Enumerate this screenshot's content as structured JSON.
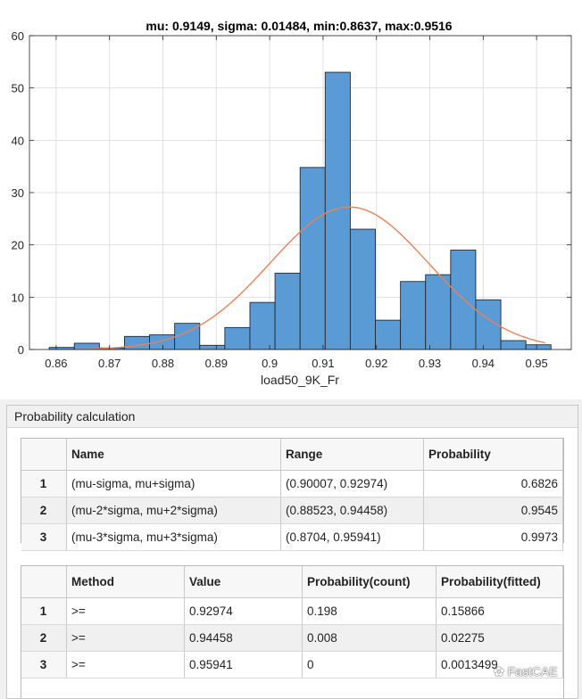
{
  "chart_data": {
    "type": "bar",
    "subtype": "histogram",
    "title": "mu: 0.9149, sigma: 0.01484, min:0.8637, max:0.9516",
    "xlabel": "load50_9K_Fr",
    "ylabel": "",
    "xlim": [
      0.855,
      0.9565
    ],
    "ylim": [
      0,
      60
    ],
    "xticks": [
      0.86,
      0.87,
      0.88,
      0.89,
      0.9,
      0.91,
      0.92,
      0.93,
      0.94,
      0.95
    ],
    "xtick_labels": [
      "0.86",
      "0.87",
      "0.88",
      "0.89",
      "0.9",
      "0.91",
      "0.92",
      "0.93",
      "0.94",
      "0.95"
    ],
    "yticks": [
      0,
      10,
      20,
      30,
      40,
      50,
      60
    ],
    "ytick_labels": [
      "0",
      "10",
      "20",
      "30",
      "40",
      "50",
      "60"
    ],
    "grid": true,
    "bin_edges": [
      0.8587,
      0.8634,
      0.8681,
      0.8728,
      0.8775,
      0.8822,
      0.8869,
      0.8916,
      0.8963,
      0.901,
      0.9057,
      0.9104,
      0.9151,
      0.9198,
      0.9245,
      0.9292,
      0.9339,
      0.9386,
      0.9433,
      0.948,
      0.9527
    ],
    "values": [
      0.4,
      1.2,
      0.3,
      2.5,
      2.8,
      5.0,
      0.8,
      4.2,
      9.0,
      14.6,
      34.8,
      53.0,
      23.0,
      5.6,
      13.0,
      14.3,
      19.0,
      9.5,
      1.7,
      0.9
    ],
    "bar_color": "#5b9bd5",
    "fit": {
      "type": "normal",
      "mu": 0.9149,
      "sigma": 0.01484,
      "x_range": [
        0.8637,
        0.9516
      ],
      "scale": 1.0,
      "color": "#e8825a"
    }
  },
  "panel": {
    "title": "Probability calculation"
  },
  "range_table": {
    "columns": [
      "Name",
      "Range",
      "Probability"
    ],
    "rows": [
      {
        "num": "1",
        "name": "(mu-sigma, mu+sigma)",
        "range": "(0.90007, 0.92974)",
        "probability": "0.6826"
      },
      {
        "num": "2",
        "name": "(mu-2*sigma, mu+2*sigma)",
        "range": "(0.88523, 0.94458)",
        "probability": "0.9545"
      },
      {
        "num": "3",
        "name": "(mu-3*sigma, mu+3*sigma)",
        "range": "(0.8704, 0.95941)",
        "probability": "0.9973"
      }
    ]
  },
  "method_table": {
    "columns": [
      "Method",
      "Value",
      "Probability(count)",
      "Probability(fitted)"
    ],
    "rows": [
      {
        "num": "1",
        "method": ">=",
        "value": "0.92974",
        "count": "0.198",
        "fitted": "0.15866"
      },
      {
        "num": "2",
        "method": ">=",
        "value": "0.94458",
        "count": "0.008",
        "fitted": "0.02275"
      },
      {
        "num": "3",
        "method": ">=",
        "value": "0.95941",
        "count": "0",
        "fitted": "0.0013499"
      }
    ]
  },
  "watermark": "FastCAE"
}
